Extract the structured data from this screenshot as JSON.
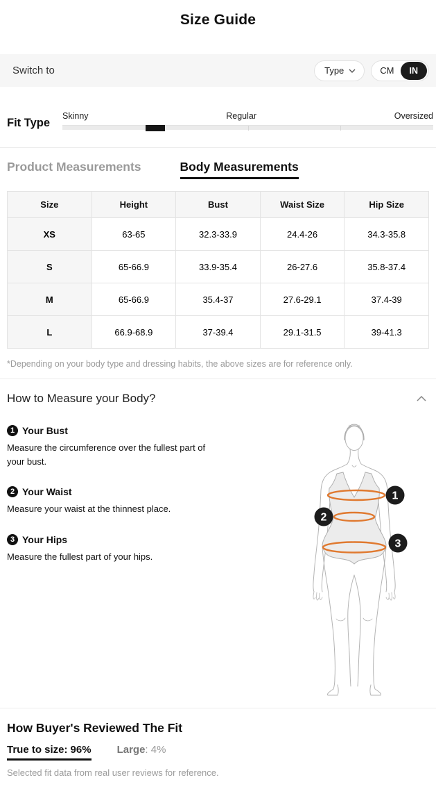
{
  "header": {
    "title": "Size Guide"
  },
  "switch_bar": {
    "label": "Switch to",
    "type_dropdown": {
      "label": "Type"
    },
    "unit_toggle": {
      "options": [
        "CM",
        "IN"
      ],
      "selected": "IN"
    }
  },
  "fit_type": {
    "label": "Fit Type",
    "options": [
      "Skinny",
      "Regular",
      "Oversized"
    ],
    "handle_percent": 25
  },
  "tabs": [
    {
      "label": "Product Measurements",
      "active": false
    },
    {
      "label": "Body Measurements",
      "active": true
    }
  ],
  "size_table": {
    "columns": [
      "Size",
      "Height",
      "Bust",
      "Waist Size",
      "Hip Size"
    ],
    "rows": [
      {
        "cells": [
          "XS",
          "63-65",
          "32.3-33.9",
          "24.4-26",
          "34.3-35.8"
        ]
      },
      {
        "cells": [
          "S",
          "65-66.9",
          "33.9-35.4",
          "26-27.6",
          "35.8-37.4"
        ]
      },
      {
        "cells": [
          "M",
          "65-66.9",
          "35.4-37",
          "27.6-29.1",
          "37.4-39"
        ]
      },
      {
        "cells": [
          "L",
          "66.9-68.9",
          "37-39.4",
          "29.1-31.5",
          "39-41.3"
        ]
      }
    ]
  },
  "disclaimer": "*Depending on your body type and dressing habits, the above sizes are for reference only.",
  "measure": {
    "title": "How to Measure your Body?",
    "items": [
      {
        "num": "1",
        "title": "Your Bust",
        "desc": "Measure the circumference over the fullest part of your bust."
      },
      {
        "num": "2",
        "title": "Your Waist",
        "desc": "Measure your waist at the thinnest place."
      },
      {
        "num": "3",
        "title": "Your Hips",
        "desc": "Measure the fullest part of your hips."
      }
    ],
    "diagram_labels": [
      "1",
      "2",
      "3"
    ]
  },
  "fit_review": {
    "title": "How Buyer's Reviewed The Fit",
    "stats": [
      {
        "label": "True to size:",
        "value": "96%",
        "selected": true
      },
      {
        "label": "Large",
        "value": ": 4%",
        "selected": false
      }
    ],
    "footnote": "Selected fit data from real user reviews for reference."
  },
  "colors": {
    "accent_orange": "#e0792f",
    "toggle_selected_bg": "#1c1c1c",
    "tab_inactive": "#9a9a9a"
  }
}
